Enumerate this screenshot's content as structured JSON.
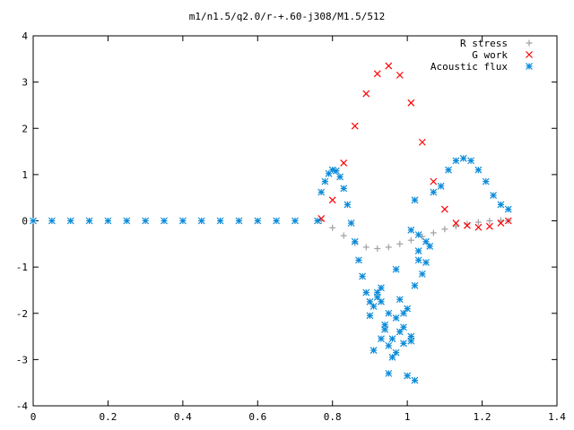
{
  "chart_data": {
    "type": "scatter",
    "title": "m1/n1.5/q2.0/r-+.60-j308/M1.5/512",
    "xlabel": "",
    "ylabel": "",
    "xlim": [
      0,
      1.4
    ],
    "ylim": [
      -4,
      4
    ],
    "x_ticks": [
      "0",
      "0.2",
      "0.4",
      "0.6",
      "0.8",
      "1",
      "1.2",
      "1.4"
    ],
    "y_ticks": [
      "4",
      "3",
      "2",
      "1",
      "0",
      "-1",
      "-2",
      "-3",
      "-4"
    ],
    "grid": false,
    "legend_position": "top-right",
    "series": [
      {
        "name": "R stress",
        "marker": "+",
        "color": "#a0a0a0",
        "x": [
          0.77,
          0.8,
          0.83,
          0.86,
          0.89,
          0.92,
          0.95,
          0.98,
          1.01,
          1.04,
          1.07,
          1.1,
          1.13,
          1.16,
          1.19,
          1.22,
          1.25,
          1.27
        ],
        "y": [
          0.0,
          -0.15,
          -0.32,
          -0.48,
          -0.57,
          -0.6,
          -0.57,
          -0.5,
          -0.42,
          -0.34,
          -0.26,
          -0.18,
          -0.12,
          -0.07,
          -0.03,
          0.0,
          0.01,
          0.0
        ]
      },
      {
        "name": "G work",
        "marker": "x",
        "color": "#ff0000",
        "x": [
          0.77,
          0.8,
          0.83,
          0.86,
          0.89,
          0.92,
          0.95,
          0.98,
          1.01,
          1.04,
          1.07,
          1.1,
          1.13,
          1.16,
          1.19,
          1.22,
          1.25,
          1.27
        ],
        "y": [
          0.05,
          0.45,
          1.25,
          2.05,
          2.75,
          3.18,
          3.35,
          3.15,
          2.55,
          1.7,
          0.85,
          0.25,
          -0.05,
          -0.1,
          -0.14,
          -0.12,
          -0.05,
          0.0
        ]
      },
      {
        "name": "Acoustic flux",
        "marker": "*",
        "color": "#0b8bd9",
        "x": [
          0,
          0.05,
          0.1,
          0.15,
          0.2,
          0.25,
          0.3,
          0.35,
          0.4,
          0.45,
          0.5,
          0.55,
          0.6,
          0.65,
          0.7,
          0.76,
          0.77,
          0.78,
          0.79,
          0.8,
          0.81,
          0.82,
          0.83,
          0.84,
          0.85,
          0.86,
          0.87,
          0.88,
          0.89,
          0.9,
          0.91,
          0.92,
          1.07,
          1.09,
          1.11,
          1.13,
          1.15,
          1.17,
          1.19,
          1.21,
          1.23,
          1.25,
          1.27,
          0.9,
          0.92,
          0.93,
          0.94,
          0.95,
          0.96,
          0.97,
          0.98,
          0.99,
          1.0,
          1.01,
          1.02,
          1.03,
          1.04,
          1.05,
          1.06,
          0.91,
          0.93,
          0.95,
          0.97,
          0.99,
          1.01,
          1.03,
          1.05,
          0.94,
          0.96,
          0.98,
          1.0,
          1.02,
          0.93,
          0.97,
          1.01,
          1.03,
          0.95,
          0.99,
          1.02
        ],
        "y": [
          0,
          0,
          0,
          0,
          0,
          0,
          0,
          0,
          0,
          0,
          0,
          0,
          0,
          0,
          0,
          0,
          0.62,
          0.85,
          1.02,
          1.1,
          1.08,
          0.95,
          0.7,
          0.35,
          -0.05,
          -0.45,
          -0.85,
          -1.2,
          -1.55,
          -1.75,
          -1.85,
          -1.65,
          0.62,
          0.75,
          1.1,
          1.3,
          1.35,
          1.3,
          1.1,
          0.85,
          0.55,
          0.35,
          0.25,
          -2.05,
          -1.55,
          -1.75,
          -2.35,
          -2.7,
          -2.55,
          -2.1,
          -2.4,
          -2.65,
          -1.9,
          -2.6,
          -1.4,
          -0.85,
          -1.15,
          -0.45,
          -0.55,
          -2.8,
          -1.45,
          -3.3,
          -2.85,
          -2.0,
          -2.5,
          -0.3,
          -0.9,
          -2.25,
          -2.95,
          -1.7,
          -3.35,
          0.45,
          -2.55,
          -1.05,
          -0.2,
          -0.65,
          -2.0,
          -2.3,
          -3.45
        ]
      }
    ]
  }
}
